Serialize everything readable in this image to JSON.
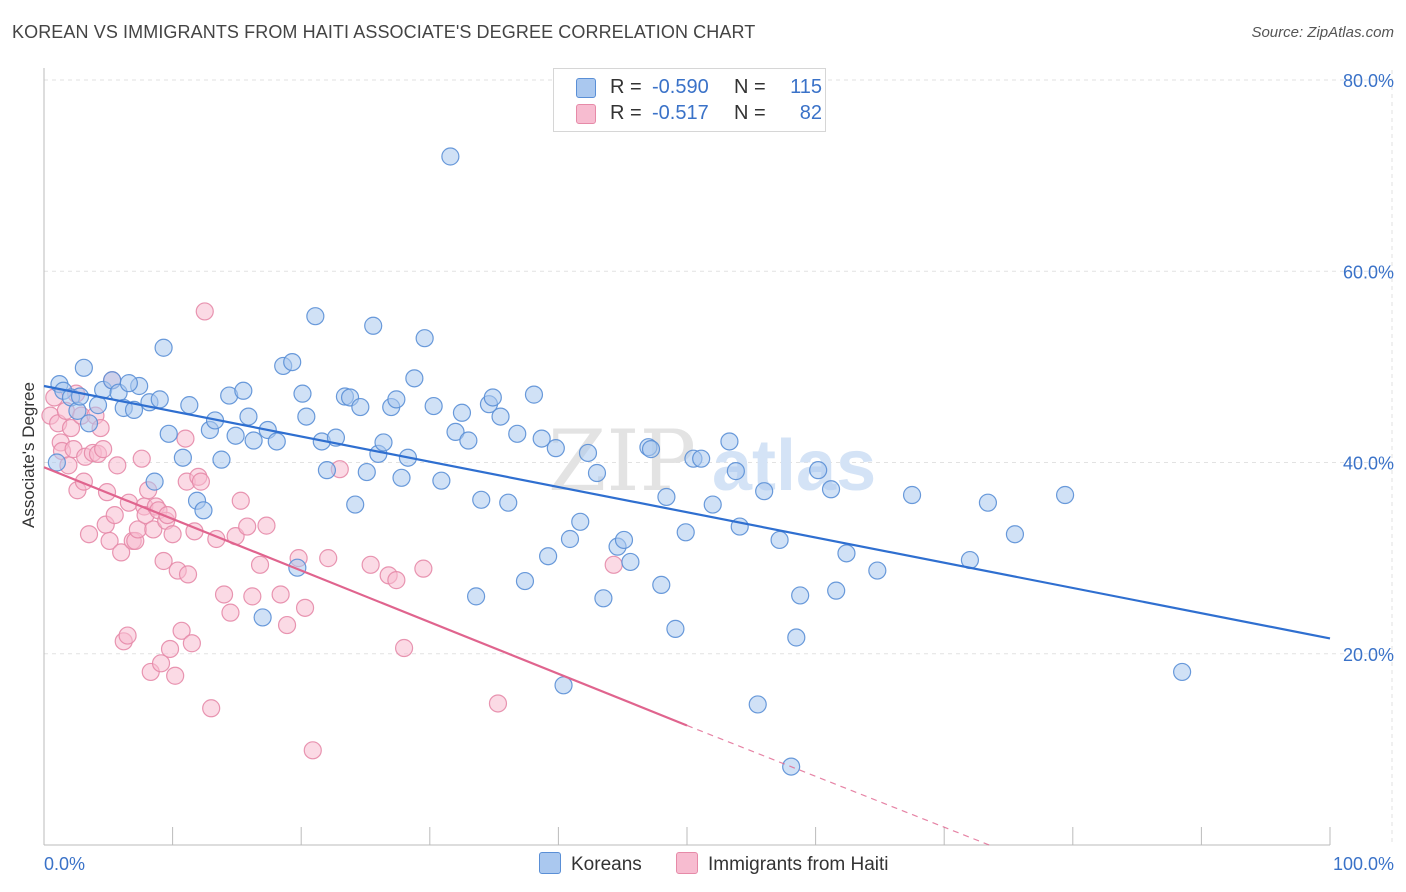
{
  "title": "KOREAN VS IMMIGRANTS FROM HAITI ASSOCIATE'S DEGREE CORRELATION CHART",
  "source": "Source: ZipAtlas.com",
  "watermark": {
    "zip": "ZIP",
    "atlas": "atlas"
  },
  "colors": {
    "korean_fill": "#aac8ef",
    "korean_stroke": "#5a8fd6",
    "korean_line": "#2f6fd0",
    "haiti_fill": "#f7bcd0",
    "haiti_stroke": "#e68aa8",
    "haiti_line": "#e0648e",
    "grid": "#e2e2e2",
    "axis_text": "#3a72c8"
  },
  "legend": {
    "rows": [
      {
        "r_label": "R =",
        "r_value": "-0.590",
        "n_label": "N =",
        "n_value": "115"
      },
      {
        "r_label": "R =",
        "r_value": "-0.517",
        "n_label": "N =",
        "n_value": "82"
      }
    ]
  },
  "bottom_legend": {
    "korean": "Koreans",
    "haiti": "Immigrants from Haiti"
  },
  "chart_data": {
    "type": "scatter",
    "xlabel": "",
    "ylabel": "Associate's Degree",
    "xlim": [
      0,
      100
    ],
    "ylim": [
      0,
      80
    ],
    "x_tick_labels": [
      "0.0%",
      "100.0%"
    ],
    "y_tick_labels": [
      "20.0%",
      "40.0%",
      "60.0%",
      "80.0%"
    ],
    "y_tick_values": [
      20,
      40,
      60,
      80
    ],
    "grid": true,
    "series": [
      {
        "name": "Koreans",
        "trend": {
          "x0": 0,
          "y0": 48.0,
          "x1": 100,
          "y1": 21.6
        },
        "points": [
          [
            1.2,
            48.2
          ],
          [
            1.5,
            47.5
          ],
          [
            2.1,
            46.8
          ],
          [
            2.6,
            45.4
          ],
          [
            3.1,
            49.9
          ],
          [
            3.5,
            44.1
          ],
          [
            4.2,
            46.0
          ],
          [
            4.6,
            47.6
          ],
          [
            5.3,
            48.6
          ],
          [
            5.8,
            47.3
          ],
          [
            6.2,
            45.7
          ],
          [
            7.0,
            45.5
          ],
          [
            7.4,
            48.0
          ],
          [
            8.2,
            46.3
          ],
          [
            8.6,
            38.0
          ],
          [
            9.3,
            52.0
          ],
          [
            9.7,
            43.0
          ],
          [
            10.8,
            40.5
          ],
          [
            11.3,
            46.0
          ],
          [
            11.9,
            36.0
          ],
          [
            12.4,
            35.0
          ],
          [
            12.9,
            43.4
          ],
          [
            13.3,
            44.4
          ],
          [
            13.8,
            40.3
          ],
          [
            14.4,
            47.0
          ],
          [
            14.9,
            42.8
          ],
          [
            15.5,
            47.5
          ],
          [
            15.9,
            44.8
          ],
          [
            16.3,
            42.3
          ],
          [
            17.0,
            23.8
          ],
          [
            17.4,
            43.4
          ],
          [
            18.1,
            42.2
          ],
          [
            18.6,
            50.1
          ],
          [
            19.3,
            50.5
          ],
          [
            19.7,
            29.0
          ],
          [
            20.1,
            47.2
          ],
          [
            20.4,
            44.8
          ],
          [
            21.1,
            55.3
          ],
          [
            21.6,
            42.2
          ],
          [
            22.0,
            39.2
          ],
          [
            22.7,
            42.6
          ],
          [
            23.4,
            46.9
          ],
          [
            23.8,
            46.8
          ],
          [
            24.2,
            35.6
          ],
          [
            24.6,
            45.8
          ],
          [
            25.1,
            39.0
          ],
          [
            25.6,
            54.3
          ],
          [
            26.0,
            40.9
          ],
          [
            26.4,
            42.1
          ],
          [
            27.0,
            45.8
          ],
          [
            27.4,
            46.6
          ],
          [
            27.8,
            38.4
          ],
          [
            28.3,
            40.5
          ],
          [
            28.8,
            48.8
          ],
          [
            29.6,
            53.0
          ],
          [
            30.3,
            45.9
          ],
          [
            30.9,
            38.1
          ],
          [
            31.6,
            72.0
          ],
          [
            32.0,
            43.2
          ],
          [
            32.5,
            45.2
          ],
          [
            33.0,
            42.3
          ],
          [
            33.6,
            26.0
          ],
          [
            34.0,
            36.1
          ],
          [
            34.6,
            46.1
          ],
          [
            34.9,
            46.8
          ],
          [
            35.5,
            44.8
          ],
          [
            36.1,
            35.8
          ],
          [
            36.8,
            43.0
          ],
          [
            37.4,
            27.6
          ],
          [
            38.1,
            47.1
          ],
          [
            38.7,
            42.5
          ],
          [
            39.2,
            30.2
          ],
          [
            39.8,
            41.5
          ],
          [
            40.4,
            16.7
          ],
          [
            40.9,
            32.0
          ],
          [
            41.7,
            33.8
          ],
          [
            42.3,
            41.0
          ],
          [
            43.0,
            38.9
          ],
          [
            43.5,
            25.8
          ],
          [
            44.6,
            31.2
          ],
          [
            45.1,
            31.9
          ],
          [
            45.6,
            29.6
          ],
          [
            47.0,
            41.6
          ],
          [
            47.2,
            41.4
          ],
          [
            48.0,
            27.2
          ],
          [
            48.4,
            36.4
          ],
          [
            49.1,
            22.6
          ],
          [
            49.9,
            32.7
          ],
          [
            50.5,
            40.4
          ],
          [
            51.1,
            40.4
          ],
          [
            52.0,
            35.6
          ],
          [
            53.3,
            42.2
          ],
          [
            53.8,
            39.1
          ],
          [
            54.1,
            33.3
          ],
          [
            55.5,
            14.7
          ],
          [
            56.0,
            37.0
          ],
          [
            57.2,
            31.9
          ],
          [
            58.1,
            8.2
          ],
          [
            58.5,
            21.7
          ],
          [
            58.8,
            26.1
          ],
          [
            60.2,
            39.2
          ],
          [
            61.6,
            26.6
          ],
          [
            61.2,
            37.2
          ],
          [
            62.4,
            30.5
          ],
          [
            64.8,
            28.7
          ],
          [
            67.5,
            36.6
          ],
          [
            72.0,
            29.8
          ],
          [
            73.4,
            35.8
          ],
          [
            75.5,
            32.5
          ],
          [
            79.4,
            36.6
          ],
          [
            88.5,
            18.1
          ],
          [
            1.0,
            40.0
          ],
          [
            2.8,
            46.9
          ],
          [
            6.6,
            48.3
          ],
          [
            9.0,
            46.6
          ]
        ]
      },
      {
        "name": "Immigrants from Haiti",
        "trend": {
          "x0": 0,
          "y0": 39.5,
          "x1": 50,
          "y1": 12.5
        },
        "trend_dashed_to": {
          "x": 73.5,
          "y": 0
        },
        "points": [
          [
            0.5,
            44.9
          ],
          [
            0.8,
            46.8
          ],
          [
            1.1,
            44.1
          ],
          [
            1.3,
            42.1
          ],
          [
            1.4,
            41.2
          ],
          [
            1.7,
            45.4
          ],
          [
            1.9,
            39.7
          ],
          [
            2.1,
            43.6
          ],
          [
            2.3,
            41.4
          ],
          [
            2.6,
            37.1
          ],
          [
            2.9,
            44.9
          ],
          [
            3.1,
            38.0
          ],
          [
            3.2,
            40.6
          ],
          [
            3.5,
            32.5
          ],
          [
            3.8,
            41.0
          ],
          [
            4.0,
            44.9
          ],
          [
            4.2,
            40.9
          ],
          [
            4.4,
            43.6
          ],
          [
            4.6,
            41.4
          ],
          [
            4.8,
            33.5
          ],
          [
            4.9,
            36.9
          ],
          [
            5.1,
            31.8
          ],
          [
            5.3,
            48.6
          ],
          [
            5.5,
            34.5
          ],
          [
            5.7,
            39.7
          ],
          [
            6.0,
            30.6
          ],
          [
            6.2,
            21.3
          ],
          [
            6.5,
            21.9
          ],
          [
            6.6,
            35.8
          ],
          [
            6.9,
            31.8
          ],
          [
            7.1,
            31.8
          ],
          [
            7.3,
            33.0
          ],
          [
            7.6,
            40.4
          ],
          [
            7.8,
            35.4
          ],
          [
            7.9,
            34.5
          ],
          [
            8.1,
            37.1
          ],
          [
            8.3,
            18.1
          ],
          [
            8.5,
            33.0
          ],
          [
            8.7,
            35.4
          ],
          [
            8.9,
            35.0
          ],
          [
            9.1,
            19.0
          ],
          [
            9.3,
            29.7
          ],
          [
            9.5,
            33.9
          ],
          [
            9.6,
            34.5
          ],
          [
            9.8,
            20.5
          ],
          [
            10.0,
            32.5
          ],
          [
            10.2,
            17.7
          ],
          [
            10.4,
            28.7
          ],
          [
            10.7,
            22.4
          ],
          [
            11.0,
            42.5
          ],
          [
            11.1,
            38.0
          ],
          [
            11.2,
            28.3
          ],
          [
            11.5,
            21.1
          ],
          [
            11.7,
            32.8
          ],
          [
            12.0,
            38.5
          ],
          [
            12.2,
            38.0
          ],
          [
            12.5,
            55.8
          ],
          [
            13.0,
            14.3
          ],
          [
            13.4,
            32.0
          ],
          [
            14.0,
            26.2
          ],
          [
            14.5,
            24.3
          ],
          [
            14.9,
            32.3
          ],
          [
            15.3,
            36.0
          ],
          [
            15.8,
            33.3
          ],
          [
            16.2,
            26.0
          ],
          [
            16.8,
            29.3
          ],
          [
            17.3,
            33.4
          ],
          [
            18.4,
            26.2
          ],
          [
            18.9,
            23.0
          ],
          [
            19.8,
            30.0
          ],
          [
            20.3,
            24.8
          ],
          [
            20.9,
            9.9
          ],
          [
            22.1,
            30.0
          ],
          [
            23.0,
            39.3
          ],
          [
            25.4,
            29.3
          ],
          [
            26.8,
            28.2
          ],
          [
            27.4,
            27.7
          ],
          [
            28.0,
            20.6
          ],
          [
            29.5,
            28.9
          ],
          [
            35.3,
            14.8
          ],
          [
            44.3,
            29.3
          ],
          [
            2.5,
            47.2
          ]
        ]
      }
    ]
  }
}
